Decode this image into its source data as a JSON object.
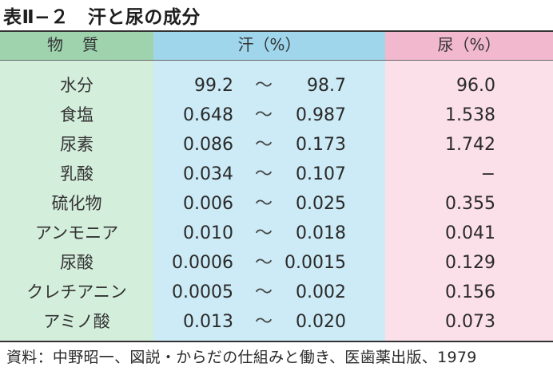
{
  "title": "表Ⅱ−２　汗と尿の成分",
  "colors": {
    "col_name_bg": "#d4eedc",
    "col_name_head": "#9ed3ae",
    "col_sweat_bg": "#ccebf6",
    "col_sweat_head": "#9fd6ec",
    "col_urine_bg": "#fbdfe9",
    "col_urine_head": "#f2b8cd"
  },
  "headers": {
    "substance": "物質",
    "sweat": "汗（%）",
    "urine": "尿（%）"
  },
  "range_symbol": "～",
  "rows": [
    {
      "name": "水分",
      "sweat_min": "99.2",
      "sweat_max": "98.7",
      "urine": "96.0"
    },
    {
      "name": "食塩",
      "sweat_min": "0.648",
      "sweat_max": "0.987",
      "urine": "1.538"
    },
    {
      "name": "尿素",
      "sweat_min": "0.086",
      "sweat_max": "0.173",
      "urine": "1.742"
    },
    {
      "name": "乳酸",
      "sweat_min": "0.034",
      "sweat_max": "0.107",
      "urine": "−"
    },
    {
      "name": "硫化物",
      "sweat_min": "0.006",
      "sweat_max": "0.025",
      "urine": "0.355"
    },
    {
      "name": "アンモニア",
      "sweat_min": "0.010",
      "sweat_max": "0.018",
      "urine": "0.041"
    },
    {
      "name": "尿酸",
      "sweat_min": "0.0006",
      "sweat_max": "0.0015",
      "urine": "0.129"
    },
    {
      "name": "クレチアニン",
      "sweat_min": "0.0005",
      "sweat_max": "0.002",
      "urine": "0.156"
    },
    {
      "name": "アミノ酸",
      "sweat_min": "0.013",
      "sweat_max": "0.020",
      "urine": "0.073"
    }
  ],
  "source": "資料：中野昭一、図説・からだの仕組みと働き、医歯薬出版、1979"
}
